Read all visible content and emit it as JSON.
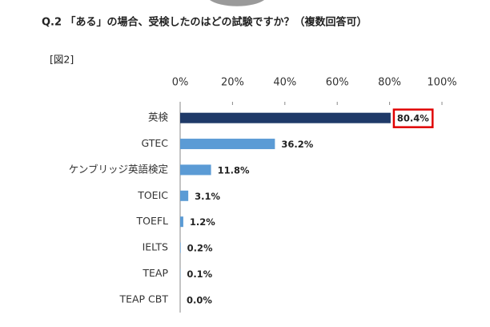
{
  "chart_data": {
    "type": "hbar",
    "title": "Q.2 「ある」の場合、受検したのはどの試験ですか？（複数回答可）",
    "subtitle": "[図2]",
    "categories": [
      "英検",
      "GTEC",
      "ケンブリッジ英語検定",
      "TOEIC",
      "TOEFL",
      "IELTS",
      "TEAP",
      "TEAP CBT"
    ],
    "values": [
      80.4,
      36.2,
      11.8,
      3.1,
      1.2,
      0.2,
      0.1,
      0.0
    ],
    "value_labels": [
      "80.4%",
      "36.2%",
      "11.8%",
      "3.1%",
      "1.2%",
      "0.2%",
      "0.1%",
      "0.0%"
    ],
    "colors": [
      "#1f3a68",
      "#5b9bd5",
      "#5b9bd5",
      "#5b9bd5",
      "#5b9bd5",
      "#5b9bd5",
      "#5b9bd5",
      "#5b9bd5"
    ],
    "highlight": 0,
    "highlight_color": "#e00000",
    "xlim": [
      0,
      100
    ],
    "xticks": [
      {
        "value": 0,
        "label": "0%"
      },
      {
        "value": 20,
        "label": "20%"
      },
      {
        "value": 40,
        "label": "40%"
      },
      {
        "value": 60,
        "label": "60%"
      },
      {
        "value": 80,
        "label": "80%"
      },
      {
        "value": 100,
        "label": "100%"
      }
    ],
    "grid": false
  }
}
